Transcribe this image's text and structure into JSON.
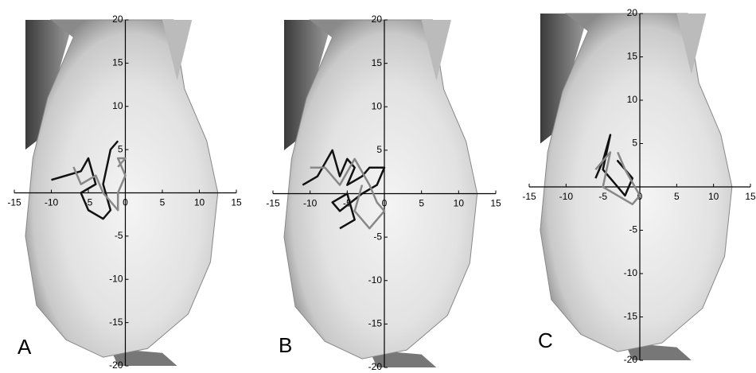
{
  "chart_data": [
    {
      "type": "line",
      "label": "A",
      "xlim": [
        -15,
        15
      ],
      "ylim": [
        -20,
        20
      ],
      "xticks": [
        -15,
        -10,
        -5,
        0,
        5,
        10,
        15
      ],
      "yticks": [
        20,
        15,
        10,
        5,
        -5,
        -10,
        -15,
        -20
      ],
      "series": [
        {
          "color": "#111111",
          "x": [
            -10,
            -8,
            -6,
            -5,
            -4,
            -6,
            -5,
            -3,
            -2,
            -3,
            -2,
            -1
          ],
          "y": [
            1.5,
            2,
            2.5,
            4,
            1,
            0,
            -2,
            -3,
            -2,
            1,
            5,
            6
          ]
        },
        {
          "color": "#888888",
          "x": [
            -7,
            -6,
            -4,
            -3,
            -2,
            -1,
            -1,
            0,
            -1,
            0,
            -1
          ],
          "y": [
            3,
            1,
            2,
            0,
            -1,
            -2,
            0,
            2,
            4,
            4,
            3
          ]
        }
      ]
    },
    {
      "type": "line",
      "label": "B",
      "xlim": [
        -15,
        15
      ],
      "ylim": [
        -20,
        20
      ],
      "xticks": [
        -15,
        -10,
        -5,
        0,
        5,
        10,
        15
      ],
      "yticks": [
        20,
        15,
        10,
        5,
        -5,
        -10,
        -15,
        -20
      ],
      "series": [
        {
          "color": "#111111",
          "x": [
            -11,
            -9,
            -7,
            -6,
            -5,
            -4,
            -5,
            -3,
            -2,
            0,
            -1,
            -3,
            -6,
            -7,
            -5,
            -4,
            -6
          ],
          "y": [
            1,
            2,
            5,
            2,
            4,
            3,
            1,
            2,
            3,
            3,
            1,
            0,
            -2,
            -1,
            0,
            -3,
            -4
          ]
        },
        {
          "color": "#888888",
          "x": [
            -10,
            -8,
            -6,
            -4,
            -2,
            -1,
            0,
            -2,
            -4,
            -3
          ],
          "y": [
            3,
            3,
            1,
            4,
            1,
            -1,
            -2,
            -4,
            -2,
            1
          ]
        }
      ]
    },
    {
      "type": "line",
      "label": "C",
      "xlim": [
        -15,
        15
      ],
      "ylim": [
        -20,
        20
      ],
      "xticks": [
        -15,
        -10,
        -5,
        0,
        5,
        10,
        15
      ],
      "yticks": [
        20,
        15,
        10,
        5,
        -5,
        -10,
        -15,
        -20
      ],
      "series": [
        {
          "color": "#111111",
          "x": [
            -6,
            -5,
            -4,
            -5,
            -3,
            -2,
            -1,
            -3,
            -2
          ],
          "y": [
            1,
            3,
            6,
            2,
            0,
            -1,
            1,
            3,
            2
          ]
        },
        {
          "color": "#888888",
          "x": [
            -6,
            -4,
            -5,
            -3,
            -1,
            0,
            -2,
            -3
          ],
          "y": [
            2,
            4,
            0,
            -1,
            -2,
            -1,
            2,
            4
          ]
        }
      ]
    }
  ]
}
